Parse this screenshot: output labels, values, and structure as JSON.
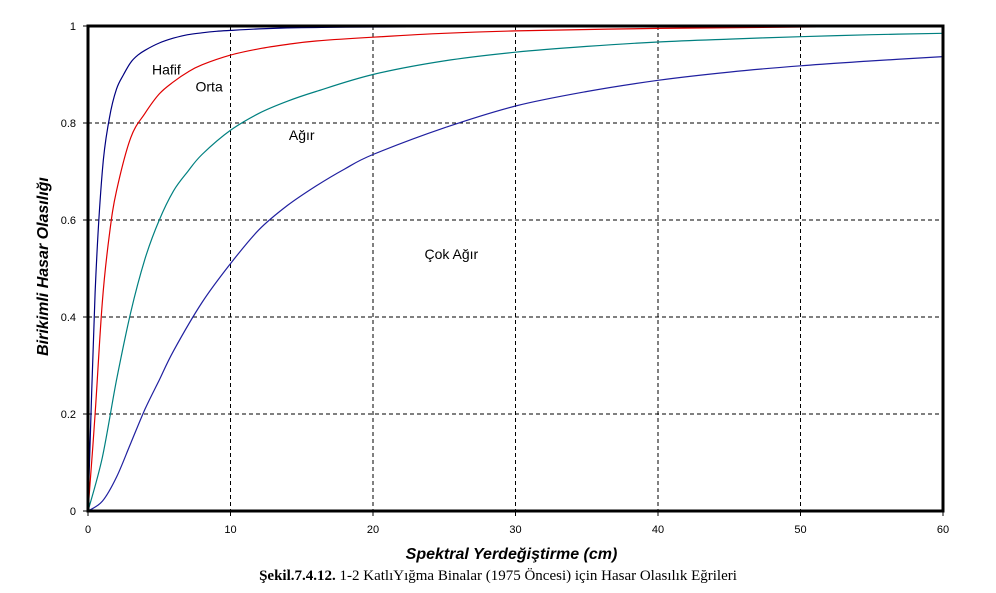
{
  "chart_data": {
    "type": "line",
    "xlabel": "Spektral Yerdeğiştirme  (cm)",
    "ylabel": "Birikimli Hasar Olasılığı",
    "xlim": [
      0,
      60
    ],
    "ylim": [
      0,
      1
    ],
    "xticks": [
      0,
      10,
      20,
      30,
      40,
      50,
      60
    ],
    "yticks": [
      0,
      0.2,
      0.4,
      0.6,
      0.8,
      1
    ],
    "ytick_labels": [
      "0",
      "0.2",
      "0.4",
      "0.6",
      "0.8",
      "1"
    ],
    "grid": true,
    "legend": "none",
    "series": [
      {
        "name": "Hafif",
        "color": "#000080",
        "x": [
          0,
          0.5,
          1,
          1.5,
          2,
          2.5,
          3,
          3.5,
          4,
          5,
          6,
          7,
          8,
          9,
          10,
          12,
          14,
          16,
          20,
          30,
          40,
          50,
          60
        ],
        "y": [
          0,
          0.45,
          0.7,
          0.81,
          0.87,
          0.9,
          0.925,
          0.94,
          0.95,
          0.965,
          0.975,
          0.982,
          0.986,
          0.989,
          0.991,
          0.994,
          0.996,
          0.997,
          0.998,
          0.999,
          1.0,
          1.0,
          1.0
        ]
      },
      {
        "name": "Orta",
        "color": "#e00000",
        "x": [
          0,
          0.5,
          1,
          1.5,
          2,
          3,
          4,
          5,
          6,
          7,
          8,
          10,
          12,
          14,
          16,
          20,
          25,
          30,
          40,
          50,
          60
        ],
        "y": [
          0,
          0.2,
          0.43,
          0.57,
          0.66,
          0.77,
          0.82,
          0.86,
          0.885,
          0.905,
          0.92,
          0.94,
          0.953,
          0.962,
          0.969,
          0.977,
          0.985,
          0.99,
          0.995,
          0.998,
          1.0
        ]
      },
      {
        "name": "Ağır",
        "color": "#008080",
        "x": [
          0,
          1,
          2,
          3,
          4,
          5,
          6,
          7,
          8,
          10,
          12,
          14,
          16,
          20,
          25,
          30,
          35,
          40,
          45,
          50,
          55,
          60
        ],
        "y": [
          0,
          0.11,
          0.27,
          0.41,
          0.52,
          0.6,
          0.66,
          0.7,
          0.735,
          0.785,
          0.82,
          0.845,
          0.865,
          0.9,
          0.928,
          0.946,
          0.958,
          0.967,
          0.973,
          0.978,
          0.982,
          0.985
        ]
      },
      {
        "name": "Çok Ağır",
        "color": "#2020a0",
        "x": [
          0,
          1,
          2,
          3,
          4,
          5,
          6,
          8,
          10,
          12,
          14,
          16,
          18,
          20,
          25,
          30,
          35,
          40,
          45,
          50,
          55,
          60
        ],
        "y": [
          0,
          0.02,
          0.07,
          0.14,
          0.21,
          0.27,
          0.33,
          0.43,
          0.51,
          0.58,
          0.63,
          0.67,
          0.705,
          0.735,
          0.79,
          0.835,
          0.865,
          0.888,
          0.905,
          0.918,
          0.928,
          0.937
        ]
      }
    ],
    "annotations": [
      {
        "text": "Hafif",
        "x": 5.5,
        "y": 0.9
      },
      {
        "text": "Orta",
        "x": 8.5,
        "y": 0.865
      },
      {
        "text": "Ağır",
        "x": 15,
        "y": 0.765
      },
      {
        "text": "Çok Ağır",
        "x": 25.5,
        "y": 0.52
      }
    ]
  },
  "caption": {
    "bold": "Şekil.7.4.12.",
    "text": " 1-2 KatlıYığma Binalar (1975 Öncesi) için Hasar Olasılık Eğrileri"
  }
}
